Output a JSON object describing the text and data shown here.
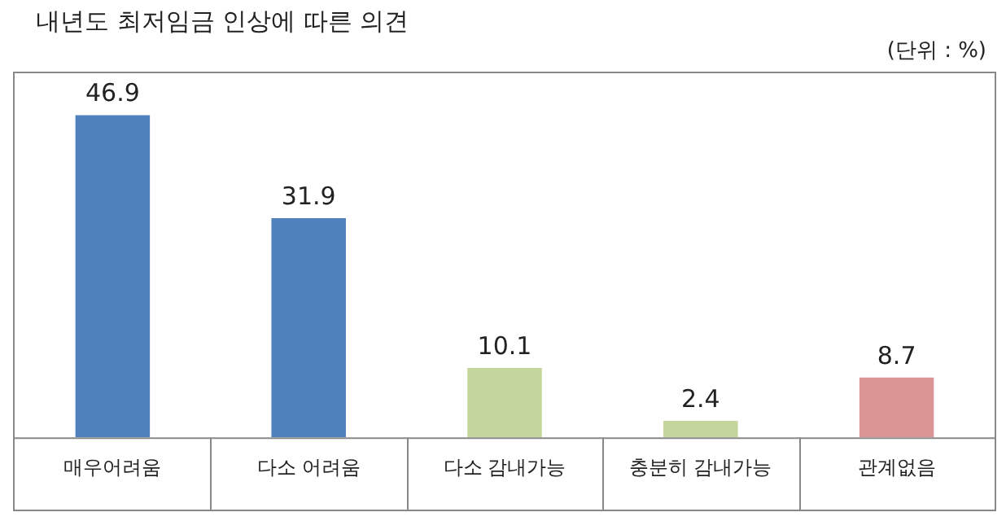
{
  "chart_data": {
    "type": "bar",
    "title": "내년도 최저임금 인상에 따른 의견",
    "annotations": [
      "(단위 : %)"
    ],
    "categories": [
      "매우어려움",
      "다소 어려움",
      "다소 감내가능",
      "충분히 감내가능",
      "관계없음"
    ],
    "values": [
      46.9,
      31.9,
      10.1,
      2.4,
      8.7
    ],
    "colors": [
      "#4f81bd",
      "#4f81bd",
      "#c3d69b",
      "#c3d69b",
      "#d99694"
    ],
    "data_labels": true,
    "grid": false,
    "legend": false
  }
}
